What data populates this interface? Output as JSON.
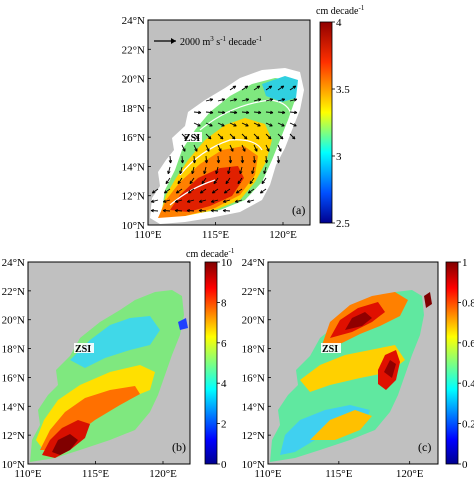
{
  "chart_data": [
    {
      "type": "heatmap",
      "panel_label": "(a)",
      "xlabel": "",
      "ylabel": "",
      "x_ticks": [
        "110°E",
        "115°E",
        "120°E"
      ],
      "y_ticks": [
        "10°N",
        "12°N",
        "14°N",
        "16°N",
        "18°N",
        "20°N",
        "22°N",
        "24°N"
      ],
      "xlim": [
        110,
        122
      ],
      "ylim": [
        10,
        24
      ],
      "colorbar": {
        "unit": "cm decade",
        "unit_exp": "-1",
        "min": 2.5,
        "max": 4,
        "ticks": [
          "2.5",
          "3",
          "3.5",
          "4"
        ],
        "colormap": "jet"
      },
      "annotations": [
        {
          "text": "ZSI",
          "lon": 113.6,
          "lat": 16.0
        }
      ],
      "vector_legend": {
        "text": "2000 m",
        "exp1": "3",
        "mid": " s",
        "exp2": "-1",
        "end": " decade",
        "exp3": "-1"
      },
      "field_description": "high values (red) in south-west basin 12-15°N, lower (green/cyan) in north-east"
    },
    {
      "type": "heatmap",
      "panel_label": "(b)",
      "xlabel": "",
      "ylabel": "",
      "x_ticks": [
        "110°E",
        "115°E",
        "120°E"
      ],
      "y_ticks": [
        "10°N",
        "12°N",
        "14°N",
        "16°N",
        "18°N",
        "20°N",
        "22°N",
        "24°N"
      ],
      "xlim": [
        110,
        122
      ],
      "ylim": [
        10,
        24
      ],
      "colorbar": {
        "unit": "cm decade",
        "unit_exp": "-1",
        "min": 0,
        "max": 10,
        "ticks": [
          "0",
          "2",
          "4",
          "6",
          "8",
          "10"
        ],
        "colormap": "jet"
      },
      "annotations": [
        {
          "text": "ZSI",
          "lon": 112.6,
          "lat": 15.5
        }
      ]
    },
    {
      "type": "heatmap",
      "panel_label": "(c)",
      "xlabel": "",
      "ylabel": "",
      "x_ticks": [
        "110°E",
        "115°E",
        "120°E"
      ],
      "y_ticks": [
        "10°N",
        "12°N",
        "14°N",
        "16°N",
        "18°N",
        "20°N",
        "22°N",
        "24°N"
      ],
      "xlim": [
        110,
        122
      ],
      "ylim": [
        10,
        24
      ],
      "colorbar": {
        "unit": "",
        "min": 0,
        "max": 1,
        "ticks": [
          "0",
          "0.2",
          "0.4",
          "0.6",
          "0.8",
          "1"
        ],
        "colormap": "jet"
      },
      "annotations": [
        {
          "text": "ZSI",
          "lon": 112.6,
          "lat": 15.5
        }
      ]
    }
  ],
  "colors": {
    "land": "#c0c0c0",
    "frame": "#000000"
  }
}
